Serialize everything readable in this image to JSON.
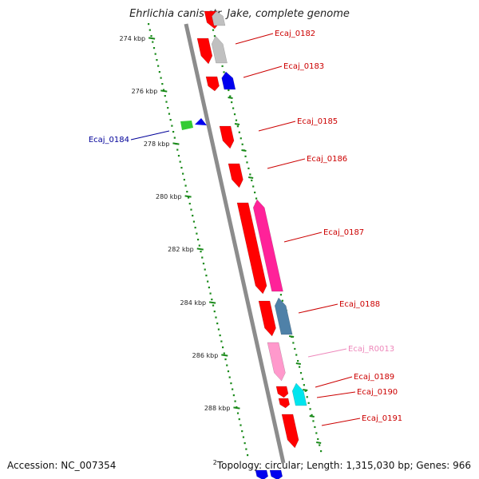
{
  "title": "Ehrlichia canis str. Jake, complete genome",
  "accession": "Accession: NC_007354",
  "topology_superscript": "2",
  "topology": "Topology: circular; Length: 1,315,030 bp; Genes: 966",
  "ticks": [
    "274 kbp",
    "276 kbp",
    "278 kbp",
    "280 kbp",
    "282 kbp",
    "284 kbp",
    "286 kbp",
    "288 kbp"
  ],
  "genes": [
    {
      "name": "Ecaj_0182",
      "color": "#cc0000"
    },
    {
      "name": "Ecaj_0183",
      "color": "#cc0000"
    },
    {
      "name": "Ecaj_0184",
      "color": "#000099"
    },
    {
      "name": "Ecaj_0185",
      "color": "#cc0000"
    },
    {
      "name": "Ecaj_0186",
      "color": "#cc0000"
    },
    {
      "name": "Ecaj_0187",
      "color": "#cc0000"
    },
    {
      "name": "Ecaj_0188",
      "color": "#cc0000"
    },
    {
      "name": "Ecaj_R0013",
      "color": "#ee88bb"
    },
    {
      "name": "Ecaj_0189",
      "color": "#cc0000"
    },
    {
      "name": "Ecaj_0190",
      "color": "#cc0000"
    },
    {
      "name": "Ecaj_0191",
      "color": "#cc0000"
    }
  ],
  "colors": {
    "backbone": "#8c8c8c",
    "tick": "#1a8a1a",
    "cds_red": "#ff0000",
    "cds_gray": "#c0c0c0",
    "cds_blue": "#0000ee",
    "cds_green": "#33cc33",
    "cds_pink": "#ff2299",
    "cds_steel": "#4f81a8",
    "rrna_pink": "#ff99cc",
    "cds_cyan": "#00e5ee"
  }
}
